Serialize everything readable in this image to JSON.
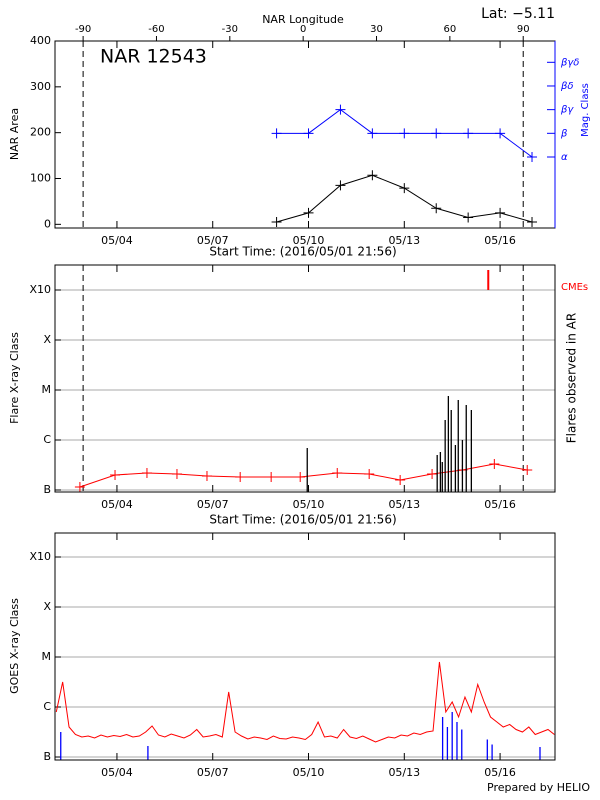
{
  "chart_data": [
    {
      "type": "line",
      "title": "NAR 12543",
      "annotation": "Lat:  −5.11",
      "xlabel": "Start Time: (2016/05/01 21:56)",
      "x2label": "NAR Longitude",
      "ylabel": "NAR Area",
      "y2label": "Mag. Class",
      "xlim": [
        2.06,
        17.72
      ],
      "xticks": [
        {
          "value": 4,
          "label": "05/04"
        },
        {
          "value": 7,
          "label": "05/07"
        },
        {
          "value": 10,
          "label": "05/10"
        },
        {
          "value": 13,
          "label": "05/13"
        },
        {
          "value": 16,
          "label": "05/16"
        }
      ],
      "x2lim": [
        -101.5,
        103
      ],
      "x2ticks": [
        -90,
        -60,
        -30,
        0,
        30,
        60,
        90
      ],
      "ylim": [
        -8,
        400
      ],
      "yticks": [
        0,
        100,
        200,
        300,
        400
      ],
      "y2lim": [
        -2,
        5.9
      ],
      "y2ticks": [
        {
          "value": 1,
          "label": "α"
        },
        {
          "value": 2,
          "label": "β"
        },
        {
          "value": 3,
          "label": "βγ"
        },
        {
          "value": 4,
          "label": "βδ"
        },
        {
          "value": 5,
          "label": "βγδ"
        }
      ],
      "grid": false,
      "series": [
        {
          "style": "line-plus",
          "color": "#000000",
          "x": [
            9,
            10,
            11,
            12,
            13,
            14,
            15,
            16,
            17
          ],
          "values": [
            5,
            25,
            85,
            107,
            79,
            35,
            15,
            25,
            5
          ]
        },
        {
          "style": "line-plus",
          "color": "#0000ff",
          "axis": "y2",
          "x": [
            9,
            10,
            11,
            12,
            13,
            14,
            15,
            16,
            17
          ],
          "values": [
            2,
            2,
            3,
            2,
            2,
            2,
            2,
            2,
            1
          ]
        }
      ]
    },
    {
      "type": "line",
      "xlabel": "Start Time: (2016/05/01 21:56)",
      "ylabel": "Flare X-ray Class",
      "y2label": "Flares observed in AR",
      "xlim": [
        2.06,
        17.72
      ],
      "xticks": [
        {
          "value": 4,
          "label": "05/04"
        },
        {
          "value": 7,
          "label": "05/07"
        },
        {
          "value": 10,
          "label": "05/10"
        },
        {
          "value": 13,
          "label": "05/13"
        },
        {
          "value": 16,
          "label": "05/16"
        }
      ],
      "ylim": [
        -0.04,
        4.5
      ],
      "yticks": [
        {
          "value": 0,
          "label": "B"
        },
        {
          "value": 1,
          "label": "C"
        },
        {
          "value": 2,
          "label": "M"
        },
        {
          "value": 3,
          "label": "X"
        },
        {
          "value": 4,
          "label": "X10"
        }
      ],
      "grid": true,
      "series": [
        {
          "style": "line-plus",
          "color": "#ff0000",
          "x": [
            2.84,
            3.94,
            4.94,
            5.88,
            6.82,
            7.86,
            8.83,
            9.74,
            10.9,
            11.9,
            12.87,
            13.87,
            14.82,
            15.82,
            16.85
          ],
          "values": [
            0.06,
            0.3,
            0.34,
            0.32,
            0.28,
            0.26,
            0.26,
            0.26,
            0.34,
            0.32,
            0.2,
            0.32,
            0.4,
            0.52,
            0.4
          ]
        },
        {
          "style": "spikes",
          "color": "#000000",
          "x": [
            9.96,
            14.03,
            14.13,
            14.19,
            14.28,
            14.38,
            14.47,
            14.6,
            14.69,
            14.82,
            14.94,
            15.1
          ],
          "values": [
            0.84,
            0.7,
            0.76,
            0.56,
            1.4,
            1.88,
            1.6,
            0.9,
            1.8,
            1.0,
            1.7,
            1.6
          ]
        },
        {
          "style": "ticks",
          "name": "CMEs",
          "color": "#ff0000",
          "x": [
            15.63
          ]
        }
      ]
    },
    {
      "type": "line",
      "ylabel": "GOES X-ray Class",
      "xlim": [
        2.06,
        17.72
      ],
      "xticks": [
        {
          "value": 4,
          "label": "05/04"
        },
        {
          "value": 7,
          "label": "05/07"
        },
        {
          "value": 10,
          "label": "05/10"
        },
        {
          "value": 13,
          "label": "05/13"
        },
        {
          "value": 16,
          "label": "05/16"
        }
      ],
      "ylim": [
        -0.06,
        4.48
      ],
      "yticks": [
        {
          "value": 0,
          "label": "B"
        },
        {
          "value": 1,
          "label": "C"
        },
        {
          "value": 2,
          "label": "M"
        },
        {
          "value": 3,
          "label": "X"
        },
        {
          "value": 4,
          "label": "X10"
        }
      ],
      "grid": true,
      "series": [
        {
          "style": "line",
          "color": "#ff0000",
          "x": [
            2.1,
            2.3,
            2.5,
            2.7,
            2.9,
            3.1,
            3.3,
            3.5,
            3.7,
            3.9,
            4.1,
            4.3,
            4.5,
            4.7,
            4.9,
            5.1,
            5.3,
            5.5,
            5.7,
            5.9,
            6.1,
            6.3,
            6.5,
            6.7,
            6.9,
            7.1,
            7.3,
            7.5,
            7.7,
            7.9,
            8.1,
            8.3,
            8.5,
            8.7,
            8.9,
            9.1,
            9.3,
            9.5,
            9.7,
            9.9,
            10.1,
            10.3,
            10.5,
            10.7,
            10.9,
            11.1,
            11.3,
            11.5,
            11.7,
            11.9,
            12.1,
            12.3,
            12.5,
            12.7,
            12.9,
            13.1,
            13.3,
            13.5,
            13.7,
            13.9,
            14.1,
            14.3,
            14.5,
            14.7,
            14.9,
            15.1,
            15.3,
            15.5,
            15.7,
            15.9,
            16.1,
            16.3,
            16.5,
            16.7,
            16.9,
            17.1,
            17.3,
            17.5,
            17.7
          ],
          "values": [
            0.9,
            1.5,
            0.6,
            0.45,
            0.4,
            0.42,
            0.38,
            0.44,
            0.4,
            0.43,
            0.41,
            0.45,
            0.4,
            0.42,
            0.5,
            0.62,
            0.44,
            0.4,
            0.46,
            0.42,
            0.38,
            0.44,
            0.55,
            0.4,
            0.42,
            0.45,
            0.4,
            1.3,
            0.5,
            0.42,
            0.36,
            0.4,
            0.38,
            0.35,
            0.42,
            0.37,
            0.36,
            0.4,
            0.38,
            0.35,
            0.45,
            0.7,
            0.4,
            0.42,
            0.38,
            0.55,
            0.4,
            0.37,
            0.42,
            0.36,
            0.3,
            0.35,
            0.4,
            0.38,
            0.44,
            0.42,
            0.48,
            0.45,
            0.5,
            0.52,
            1.9,
            0.9,
            1.1,
            0.8,
            1.2,
            0.9,
            1.45,
            1.1,
            0.8,
            0.7,
            0.6,
            0.65,
            0.55,
            0.5,
            0.6,
            0.45,
            0.5,
            0.55,
            0.45
          ]
        },
        {
          "style": "spikes",
          "color": "#0000ff",
          "x": [
            2.24,
            4.97,
            14.2,
            14.35,
            14.5,
            14.65,
            14.8,
            15.6,
            15.75,
            17.25
          ],
          "values": [
            0.5,
            0.22,
            0.8,
            0.6,
            0.9,
            0.7,
            0.55,
            0.35,
            0.25,
            0.2
          ]
        }
      ]
    }
  ],
  "footer": "Prepared by HELIO"
}
